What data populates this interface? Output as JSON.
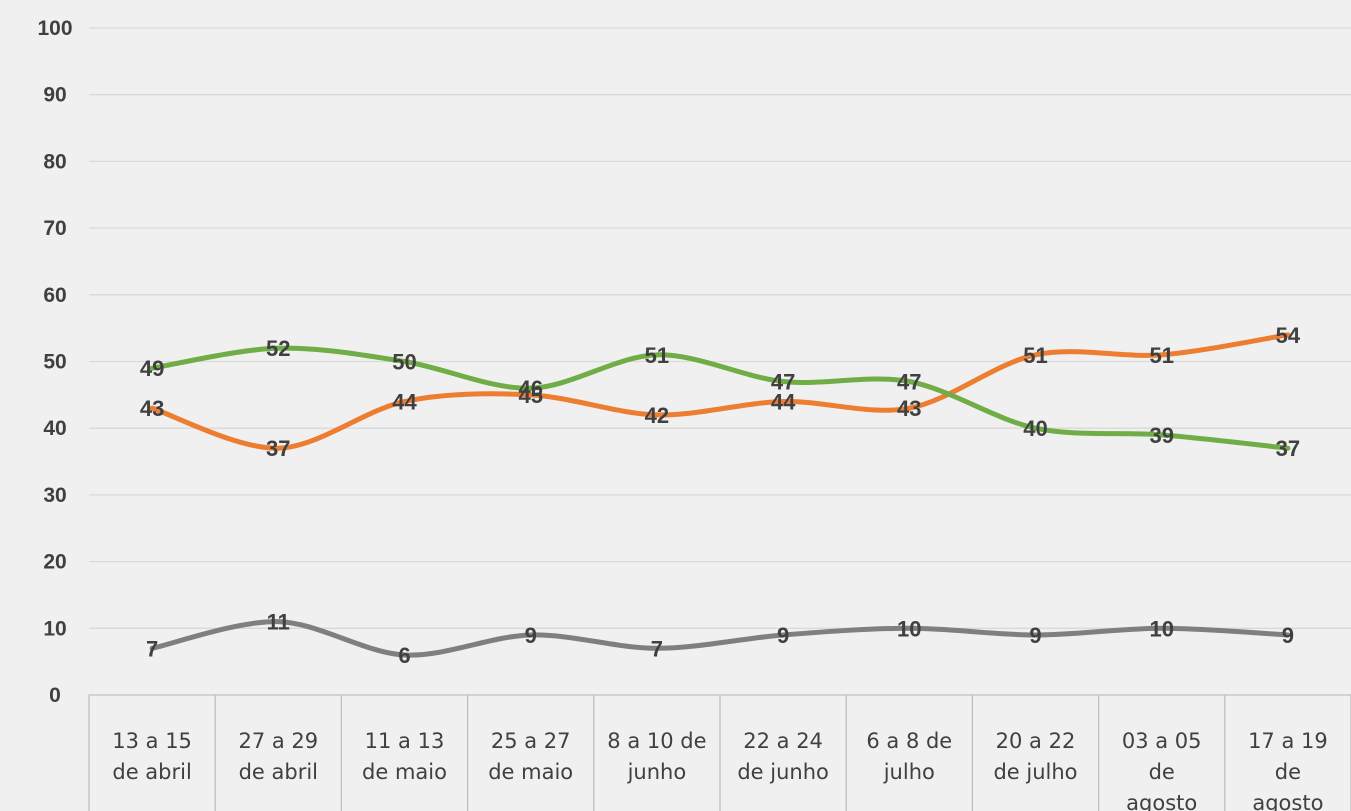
{
  "chart_data": {
    "type": "line",
    "categories": [
      [
        "13 a 15",
        "de abril"
      ],
      [
        "27 a 29",
        "de abril"
      ],
      [
        "11 a 13",
        "de maio"
      ],
      [
        "25 a 27",
        "de maio"
      ],
      [
        "8 a 10 de",
        "junho"
      ],
      [
        "22 a 24",
        "de junho"
      ],
      [
        "6 a 8 de",
        "julho"
      ],
      [
        "20 a 22",
        "de julho"
      ],
      [
        "03 a 05",
        "de",
        "agosto"
      ],
      [
        "17 a 19",
        "de",
        "agosto"
      ]
    ],
    "series": [
      {
        "color": "#ed7d31",
        "values": [
          43,
          37,
          44,
          45,
          42,
          44,
          43,
          51,
          51,
          54
        ]
      },
      {
        "color": "#70ad47",
        "values": [
          49,
          52,
          50,
          46,
          51,
          47,
          47,
          40,
          39,
          37
        ]
      },
      {
        "color": "#7f7f7f",
        "values": [
          7,
          11,
          6,
          9,
          7,
          9,
          10,
          9,
          10,
          9
        ]
      }
    ],
    "ylim": [
      0,
      100
    ],
    "yticks": [
      0,
      10,
      20,
      30,
      40,
      50,
      60,
      70,
      80,
      90,
      100
    ],
    "grid": true,
    "legend": "none",
    "data_labels": true
  }
}
